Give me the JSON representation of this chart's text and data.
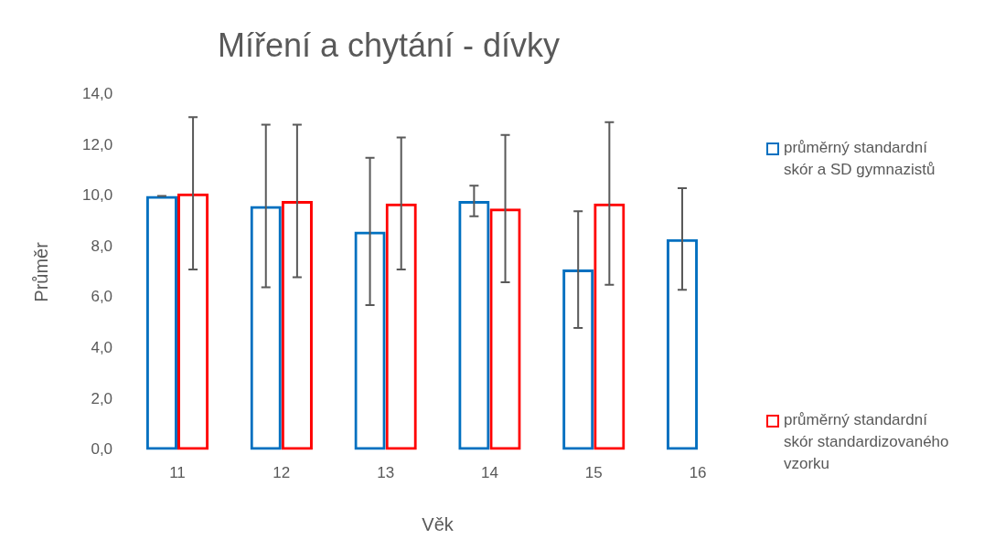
{
  "chart_data": {
    "type": "bar",
    "title": "Míření a chytání - dívky",
    "xlabel": "Věk",
    "ylabel": "Průměr",
    "categories": [
      "11",
      "12",
      "13",
      "14",
      "15",
      "16"
    ],
    "series": [
      {
        "name": "průměrný standardní skór a SD gymnazistů",
        "color": "#0070c0",
        "values": [
          10.0,
          9.6,
          8.6,
          9.8,
          7.1,
          8.3
        ],
        "errors": [
          0,
          3.2,
          2.9,
          0.6,
          2.3,
          2.0
        ]
      },
      {
        "name": "průměrný standardní skór standardizovaného vzorku",
        "color": "#ff0000",
        "values": [
          10.1,
          9.8,
          9.7,
          9.5,
          9.7,
          null
        ],
        "errors": [
          3.0,
          3.0,
          2.6,
          2.9,
          3.2,
          null
        ]
      }
    ],
    "ylim": [
      0,
      14
    ],
    "yticks": [
      {
        "value": 0,
        "label": "0,0"
      },
      {
        "value": 2,
        "label": "2,0"
      },
      {
        "value": 4,
        "label": "4,0"
      },
      {
        "value": 6,
        "label": "6,0"
      },
      {
        "value": 8,
        "label": "8,0"
      },
      {
        "value": 10,
        "label": "10,0"
      },
      {
        "value": 12,
        "label": "12,0"
      },
      {
        "value": 14,
        "label": "14,0"
      }
    ],
    "grid": false,
    "legend": "right"
  }
}
